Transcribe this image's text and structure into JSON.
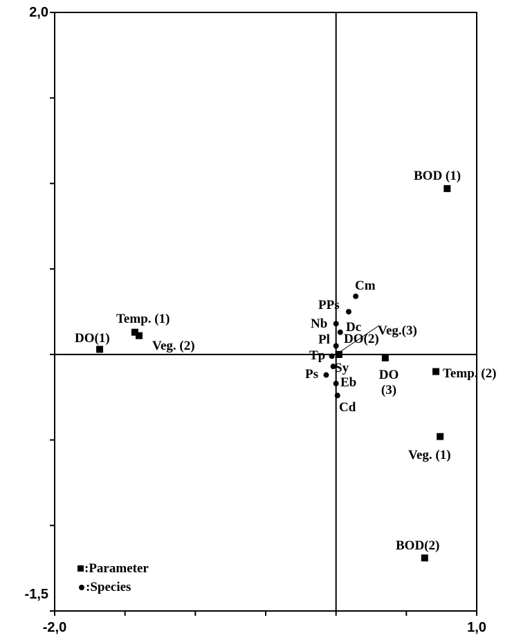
{
  "chart_data": {
    "type": "scatter",
    "xlim": [
      -2.0,
      1.0
    ],
    "ylim": [
      -1.5,
      2.0
    ],
    "x_tick_labels": [
      "-2,0",
      "1,0"
    ],
    "y_tick_labels": [
      "2,0",
      "-1,5"
    ],
    "grid": false,
    "legend": {
      "position": "bottom-left",
      "items": [
        {
          "marker": "square",
          "label": ":Parameter"
        },
        {
          "marker": "circle",
          "label": ":Species"
        }
      ]
    },
    "series": [
      {
        "name": "Parameter",
        "marker": "square",
        "points": [
          {
            "label": "BOD (1)",
            "x": 0.79,
            "y": 0.97
          },
          {
            "label": "BOD(2)",
            "x": 0.63,
            "y": -1.19
          },
          {
            "label": "Temp. (1)",
            "x": -1.43,
            "y": 0.13
          },
          {
            "label": "Temp. (2)",
            "x": 0.71,
            "y": -0.1
          },
          {
            "label": "DO(1)",
            "x": -1.68,
            "y": 0.03
          },
          {
            "label": "DO(2)",
            "x": 0.02,
            "y": 0.0
          },
          {
            "label": "DO (3)",
            "x": 0.35,
            "y": -0.02
          },
          {
            "label": "Veg. (1)",
            "x": 0.74,
            "y": -0.48
          },
          {
            "label": "Veg. (2)",
            "x": -1.4,
            "y": 0.11
          },
          {
            "label": "Veg.(3)",
            "x": 0.02,
            "y": 0.0
          }
        ]
      },
      {
        "name": "Species",
        "marker": "circle",
        "points": [
          {
            "label": "Cm",
            "x": 0.14,
            "y": 0.34
          },
          {
            "label": "PPs",
            "x": 0.09,
            "y": 0.25
          },
          {
            "label": "Nb",
            "x": 0.0,
            "y": 0.18
          },
          {
            "label": "Dc",
            "x": 0.03,
            "y": 0.13
          },
          {
            "label": "Pl",
            "x": 0.0,
            "y": 0.05
          },
          {
            "label": "Tp",
            "x": -0.03,
            "y": -0.01
          },
          {
            "label": "Sy",
            "x": -0.02,
            "y": -0.07
          },
          {
            "label": "Ps",
            "x": -0.07,
            "y": -0.12
          },
          {
            "label": "Eb",
            "x": 0.0,
            "y": -0.17
          },
          {
            "label": "Cd",
            "x": 0.01,
            "y": -0.24
          }
        ]
      }
    ]
  }
}
